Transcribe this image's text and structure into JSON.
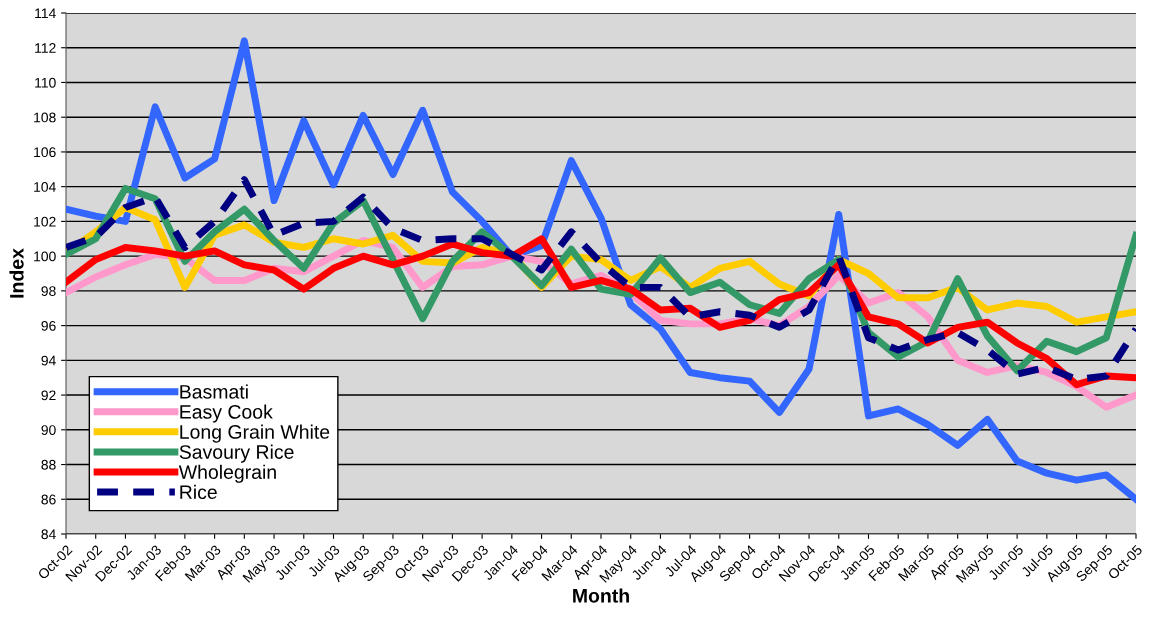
{
  "chart_data": {
    "type": "line",
    "xlabel": "Month",
    "ylabel": "Index",
    "categories": [
      "Oct-02",
      "Nov-02",
      "Dec-02",
      "Jan-03",
      "Feb-03",
      "Mar-03",
      "Apr-03",
      "May-03",
      "Jun-03",
      "Jul-03",
      "Aug-03",
      "Sep-03",
      "Oct-03",
      "Nov-03",
      "Dec-03",
      "Jan-04",
      "Feb-04",
      "Mar-04",
      "Apr-04",
      "May-04",
      "Jun-04",
      "Jul-04",
      "Aug-04",
      "Sep-04",
      "Oct-04",
      "Nov-04",
      "Dec-04",
      "Jan-05",
      "Feb-05",
      "Mar-05",
      "Apr-05",
      "May-05",
      "Jun-05",
      "Jul-05",
      "Aug-05",
      "Sep-05",
      "Oct-05"
    ],
    "ylim": [
      84,
      114
    ],
    "yticks": [
      84,
      86,
      88,
      90,
      92,
      94,
      96,
      98,
      100,
      102,
      104,
      106,
      108,
      110,
      112,
      114
    ],
    "grid": "y",
    "legend": "bottom left",
    "marker": "none",
    "series": [
      {
        "name": "Basmati",
        "color": "#3366ff",
        "line_style": "solid",
        "values": [
          102.7,
          102.3,
          102.0,
          108.6,
          104.5,
          105.6,
          112.4,
          103.2,
          107.8,
          104.1,
          108.1,
          104.7,
          108.4,
          103.7,
          102.0,
          100.0,
          100.6,
          105.5,
          102.2,
          97.2,
          95.8,
          93.3,
          93.0,
          92.8,
          91.0,
          93.5,
          102.4,
          90.8,
          91.2,
          90.3,
          89.1,
          90.6,
          88.2,
          87.5,
          87.1,
          87.4,
          86.0
        ]
      },
      {
        "name": "Easy Cook",
        "color": "#ff99cc",
        "line_style": "solid",
        "values": [
          97.9,
          98.8,
          99.5,
          100.1,
          99.9,
          98.6,
          98.6,
          99.3,
          99.1,
          100.0,
          100.9,
          100.5,
          98.2,
          99.4,
          99.5,
          100.0,
          99.7,
          98.4,
          98.9,
          97.9,
          96.3,
          96.1,
          96.1,
          96.4,
          96.0,
          97.1,
          98.9,
          97.3,
          97.9,
          96.5,
          94.0,
          93.3,
          93.7,
          93.3,
          92.5,
          91.3,
          92.0
        ]
      },
      {
        "name": "Long Grain White",
        "color": "#ffcc00",
        "line_style": "solid",
        "values": [
          100.2,
          101.4,
          102.8,
          102.1,
          98.2,
          101.2,
          101.8,
          100.8,
          100.5,
          101.0,
          100.7,
          101.2,
          99.7,
          99.6,
          100.5,
          100.1,
          98.2,
          100.0,
          99.8,
          98.6,
          99.4,
          98.2,
          99.3,
          99.7,
          98.4,
          97.7,
          99.8,
          99.0,
          97.6,
          97.6,
          98.2,
          96.9,
          97.3,
          97.1,
          96.2,
          96.5,
          96.8
        ]
      },
      {
        "name": "Savoury Rice",
        "color": "#339966",
        "line_style": "solid",
        "values": [
          100.1,
          101.0,
          103.9,
          103.3,
          99.7,
          101.4,
          102.7,
          100.9,
          99.3,
          101.9,
          103.2,
          99.8,
          96.4,
          99.7,
          101.4,
          100.0,
          98.3,
          100.4,
          98.1,
          97.8,
          99.9,
          97.9,
          98.5,
          97.2,
          96.7,
          98.7,
          99.8,
          95.6,
          94.2,
          95.1,
          98.7,
          95.4,
          93.4,
          95.1,
          94.5,
          95.3,
          101.2
        ]
      },
      {
        "name": "Wholegrain",
        "color": "#ff0000",
        "line_style": "solid",
        "values": [
          98.5,
          99.8,
          100.5,
          100.3,
          100.0,
          100.3,
          99.5,
          99.2,
          98.1,
          99.3,
          100.0,
          99.5,
          100.0,
          100.7,
          100.2,
          100.0,
          101.0,
          98.2,
          98.6,
          98.1,
          96.9,
          97.0,
          95.9,
          96.3,
          97.5,
          97.9,
          99.5,
          96.5,
          96.1,
          95.0,
          95.9,
          96.2,
          95.0,
          94.1,
          92.6,
          93.1,
          93.0
        ]
      },
      {
        "name": "Rice",
        "color": "#000080",
        "line_style": "dashed",
        "values": [
          100.5,
          101.1,
          102.8,
          103.4,
          100.5,
          102.0,
          104.4,
          101.2,
          101.9,
          102.0,
          103.4,
          101.6,
          100.9,
          101.0,
          101.0,
          100.1,
          99.2,
          101.4,
          99.6,
          98.2,
          98.2,
          96.5,
          96.8,
          96.6,
          95.9,
          96.9,
          100.0,
          95.3,
          94.6,
          95.2,
          95.6,
          94.6,
          93.2,
          93.6,
          92.9,
          93.1,
          95.8
        ]
      }
    ]
  }
}
